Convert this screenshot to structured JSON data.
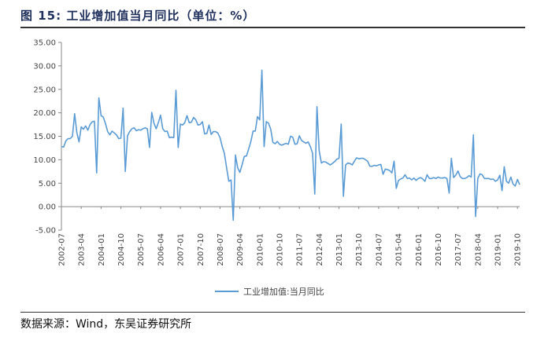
{
  "title": "图 15: 工业增加值当月同比（单位：%）",
  "source": "数据来源：Wind，东吴证券研究所",
  "chart_data": {
    "type": "line",
    "ylim": [
      -5,
      35
    ],
    "yticks": [
      "35.00",
      "30.00",
      "25.00",
      "20.00",
      "15.00",
      "10.00",
      "5.00",
      "0.00",
      "-5.00"
    ],
    "ytick_values": [
      35,
      30,
      25,
      20,
      15,
      10,
      5,
      0,
      -5
    ],
    "xtick_labels": [
      "2002-07",
      "2003-04",
      "2004-01",
      "2004-10",
      "2005-07",
      "2006-04",
      "2007-01",
      "2007-10",
      "2008-07",
      "2009-04",
      "2010-01",
      "2010-10",
      "2011-07",
      "2012-04",
      "2013-01",
      "2013-10",
      "2014-07",
      "2015-04",
      "2016-01",
      "2016-10",
      "2017-07",
      "2018-04",
      "2019-01",
      "2019-10"
    ],
    "grid": false,
    "legend": "bottom-center",
    "color": "#5b9bd5",
    "series": [
      {
        "name": "工业增加值:当月同比",
        "start": "2002-07",
        "end": "2019-10",
        "values": [
          12.8,
          12.7,
          14.0,
          14.5,
          14.5,
          15.0,
          19.8,
          15.8,
          13.8,
          17.0,
          16.5,
          17.2,
          16.3,
          17.5,
          18.1,
          18.2,
          7.2,
          23.2,
          19.4,
          19.1,
          17.7,
          16.0,
          15.3,
          16.1,
          15.7,
          15.3,
          14.5,
          14.6,
          21.0,
          7.5,
          15.1,
          16.0,
          16.6,
          16.8,
          16.2,
          16.4,
          16.3,
          16.6,
          16.8,
          16.6,
          12.6,
          20.1,
          17.8,
          16.6,
          17.9,
          19.5,
          16.6,
          16.0,
          16.1,
          14.7,
          14.8,
          14.7,
          24.8,
          12.6,
          17.6,
          17.4,
          17.9,
          19.4,
          17.9,
          18.0,
          19.0,
          18.5,
          17.4,
          17.5,
          18.1,
          15.5,
          15.6,
          17.4,
          15.4,
          16.0,
          16.0,
          15.7,
          14.7,
          12.8,
          11.3,
          8.2,
          5.4,
          5.7,
          -2.9,
          11.0,
          8.3,
          7.3,
          8.9,
          10.7,
          10.8,
          12.3,
          13.9,
          16.1,
          16.1,
          19.2,
          18.5,
          29.1,
          12.8,
          18.1,
          17.8,
          16.5,
          13.7,
          13.4,
          13.9,
          13.3,
          13.1,
          13.3,
          13.5,
          13.3,
          15.0,
          14.8,
          13.3,
          13.4,
          15.1,
          14.1,
          13.8,
          13.5,
          13.8,
          12.8,
          11.4,
          2.7,
          21.3,
          11.9,
          9.3,
          9.6,
          9.5,
          9.2,
          8.9,
          9.2,
          9.6,
          10.1,
          10.3,
          17.6,
          2.2,
          8.9,
          9.3,
          9.2,
          8.9,
          9.7,
          10.4,
          10.2,
          10.3,
          10.3,
          10.0,
          9.7,
          8.6,
          8.6,
          8.8,
          8.7,
          8.9,
          9.0,
          6.9,
          8.0,
          7.9,
          7.7,
          7.2,
          9.7,
          3.9,
          5.6,
          5.9,
          6.1,
          6.8,
          6.0,
          6.1,
          5.7,
          6.1,
          5.6,
          6.0,
          6.2,
          5.9,
          5.4,
          6.8,
          6.0,
          6.0,
          6.2,
          6.0,
          6.3,
          6.1,
          6.1,
          6.2,
          6.0,
          2.9,
          10.3,
          6.2,
          6.7,
          7.6,
          6.4,
          6.0,
          6.0,
          6.2,
          6.6,
          6.3,
          15.3,
          -2.1,
          6.0,
          7.0,
          6.8,
          6.0,
          6.0,
          6.0,
          5.8,
          5.9,
          5.4,
          5.7,
          6.7,
          3.4,
          8.5,
          5.4,
          5.0,
          6.3,
          4.8,
          4.4,
          5.8,
          4.7
        ]
      }
    ]
  }
}
